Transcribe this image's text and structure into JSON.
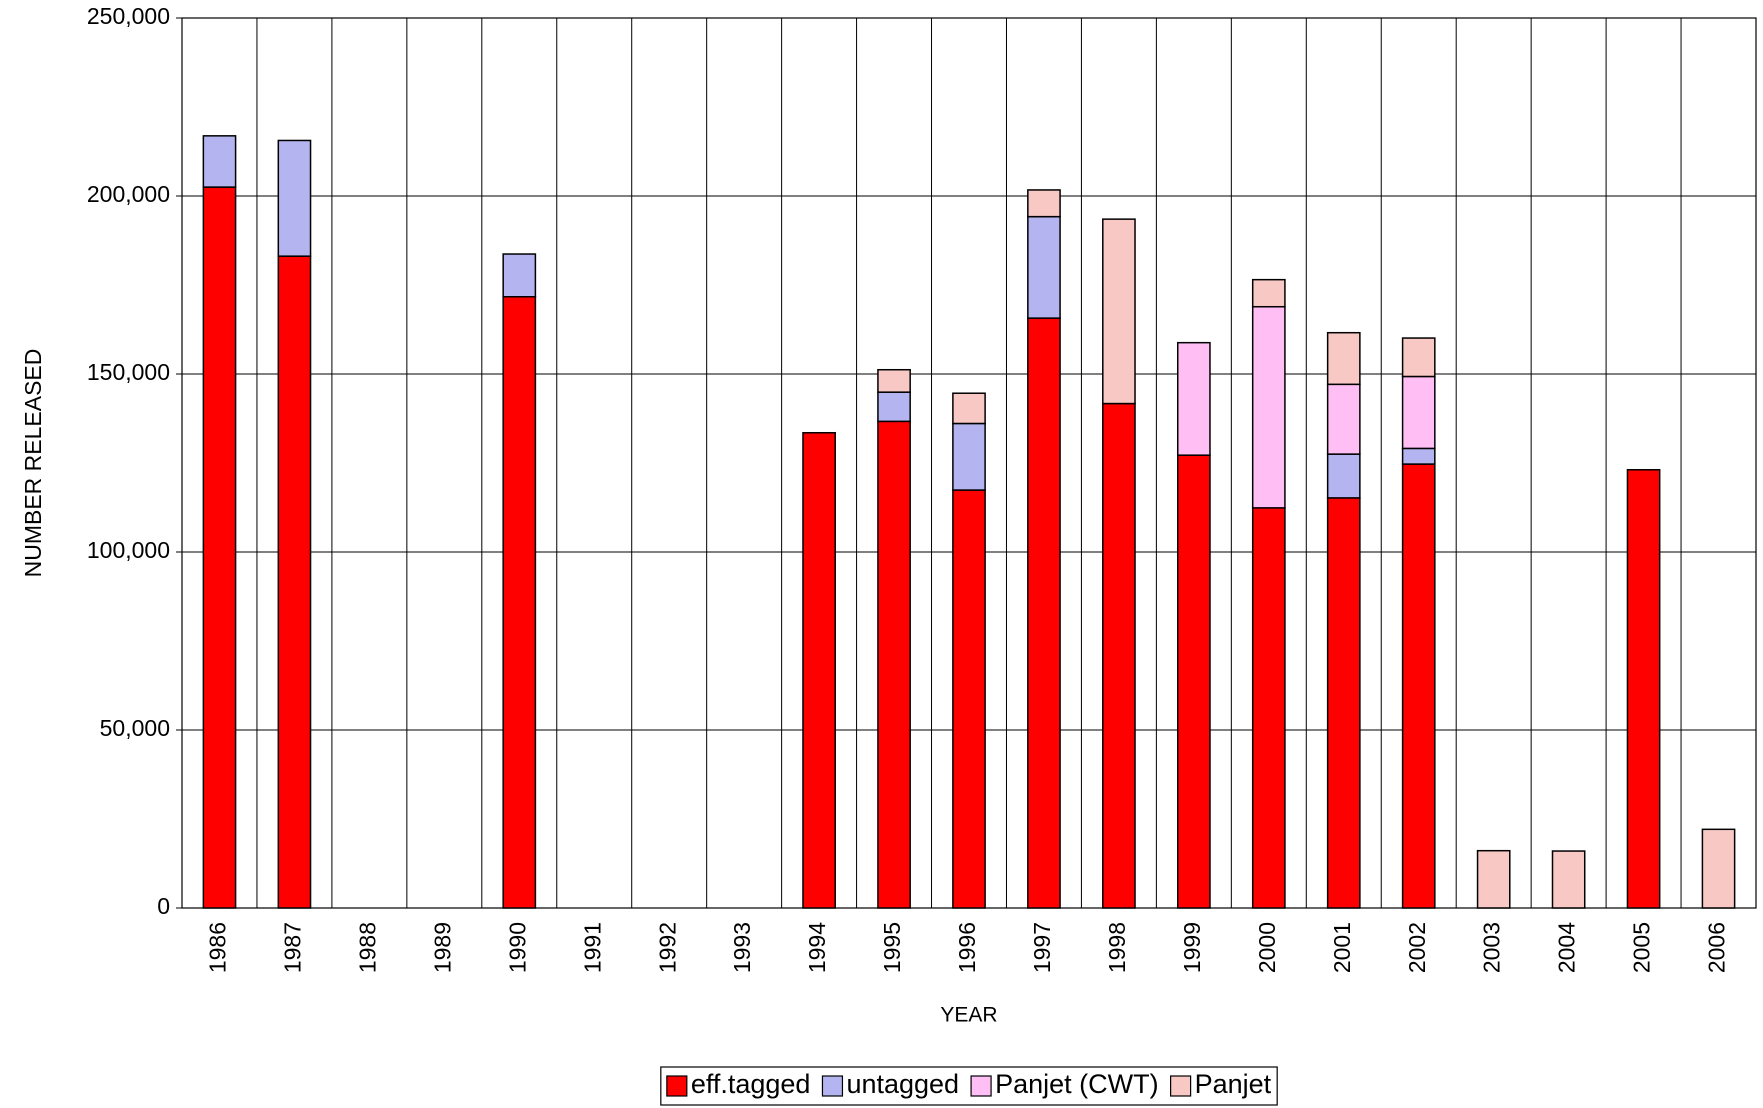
{
  "chart_data": {
    "type": "stacked_bar",
    "x_label": "YEAR",
    "y_label": "NUMBER RELEASED",
    "categories": [
      "1986",
      "1987",
      "1988",
      "1989",
      "1990",
      "1991",
      "1992",
      "1993",
      "1994",
      "1995",
      "1996",
      "1997",
      "1998",
      "1999",
      "2000",
      "2001",
      "2002",
      "2003",
      "2004",
      "2005",
      "2006"
    ],
    "series": [
      {
        "name": "eff.tagged",
        "color": "#ff0000",
        "values": [
          202500,
          183100,
          null,
          null,
          171700,
          null,
          null,
          null,
          133500,
          136700,
          117400,
          165700,
          141700,
          127200,
          112400,
          115200,
          124700,
          null,
          null,
          123100,
          null
        ]
      },
      {
        "name": "untagged",
        "color": "#b4b4f0",
        "values": [
          14400,
          32500,
          null,
          null,
          12000,
          null,
          null,
          null,
          null,
          8200,
          18700,
          28500,
          null,
          null,
          null,
          12300,
          4400,
          null,
          null,
          null,
          null
        ]
      },
      {
        "name": "Panjet (CWT)",
        "color": "#ffbff5",
        "values": [
          null,
          null,
          null,
          null,
          null,
          null,
          null,
          null,
          null,
          null,
          null,
          null,
          null,
          31600,
          56500,
          19600,
          20200,
          null,
          null,
          null,
          null
        ]
      },
      {
        "name": "Panjet",
        "color": "#f8c8c4",
        "values": [
          null,
          null,
          null,
          null,
          null,
          null,
          null,
          null,
          null,
          6300,
          8500,
          7500,
          51800,
          null,
          7600,
          14500,
          10800,
          16100,
          16000,
          null,
          22100
        ]
      }
    ],
    "ylim": [
      0,
      250000
    ],
    "yticks": [
      0,
      {
        "value": 50000,
        "label": "50,000"
      },
      {
        "value": 100000,
        "label": "100,000"
      },
      {
        "value": 150000,
        "label": "150,000"
      },
      {
        "value": 200000,
        "label": "200,000"
      },
      {
        "value": 250000,
        "label": "250,000"
      }
    ],
    "grid": true,
    "legend": "bottom"
  }
}
